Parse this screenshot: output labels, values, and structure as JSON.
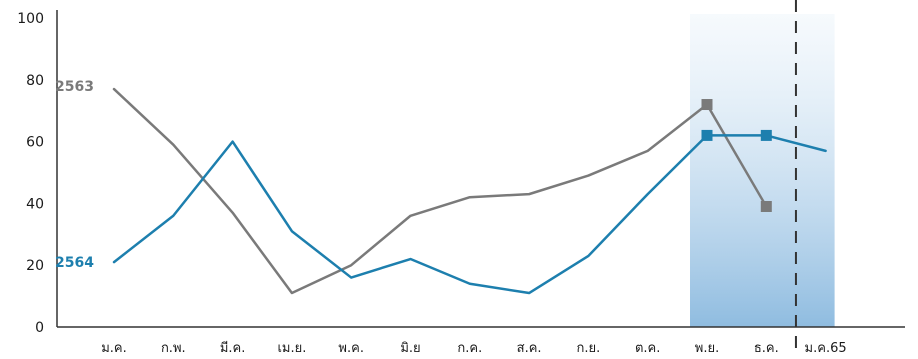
{
  "chart_data": {
    "type": "line",
    "categories": [
      "ม.ค.",
      "ก.พ.",
      "มี.ค.",
      "เม.ย.",
      "พ.ค.",
      "มิ.ย",
      "ก.ค.",
      "ส.ค.",
      "ก.ย.",
      "ต.ค.",
      "พ.ย.",
      "ธ.ค.",
      "ม.ค.65"
    ],
    "series": [
      {
        "name": "2563",
        "color": "#7a7a7a",
        "values": [
          77,
          59,
          37,
          11,
          20,
          36,
          42,
          43,
          49,
          57,
          72,
          39,
          null
        ],
        "marker_indices": [
          10,
          11
        ]
      },
      {
        "name": "2564",
        "color": "#1d7fae",
        "values": [
          21,
          36,
          60,
          31,
          16,
          22,
          14,
          11,
          23,
          43,
          62,
          62,
          57
        ],
        "marker_indices": [
          10,
          11
        ]
      }
    ],
    "y_ticks": [
      "0",
      "20",
      "40",
      "60",
      "80",
      "100"
    ],
    "ylim": [
      0,
      100
    ],
    "highlight_range": [
      "พ.ย.",
      "ม.ค.65"
    ],
    "forecast_divider_after": "ธ.ค.",
    "grid": false,
    "title": "",
    "xlabel": "",
    "ylabel": ""
  }
}
